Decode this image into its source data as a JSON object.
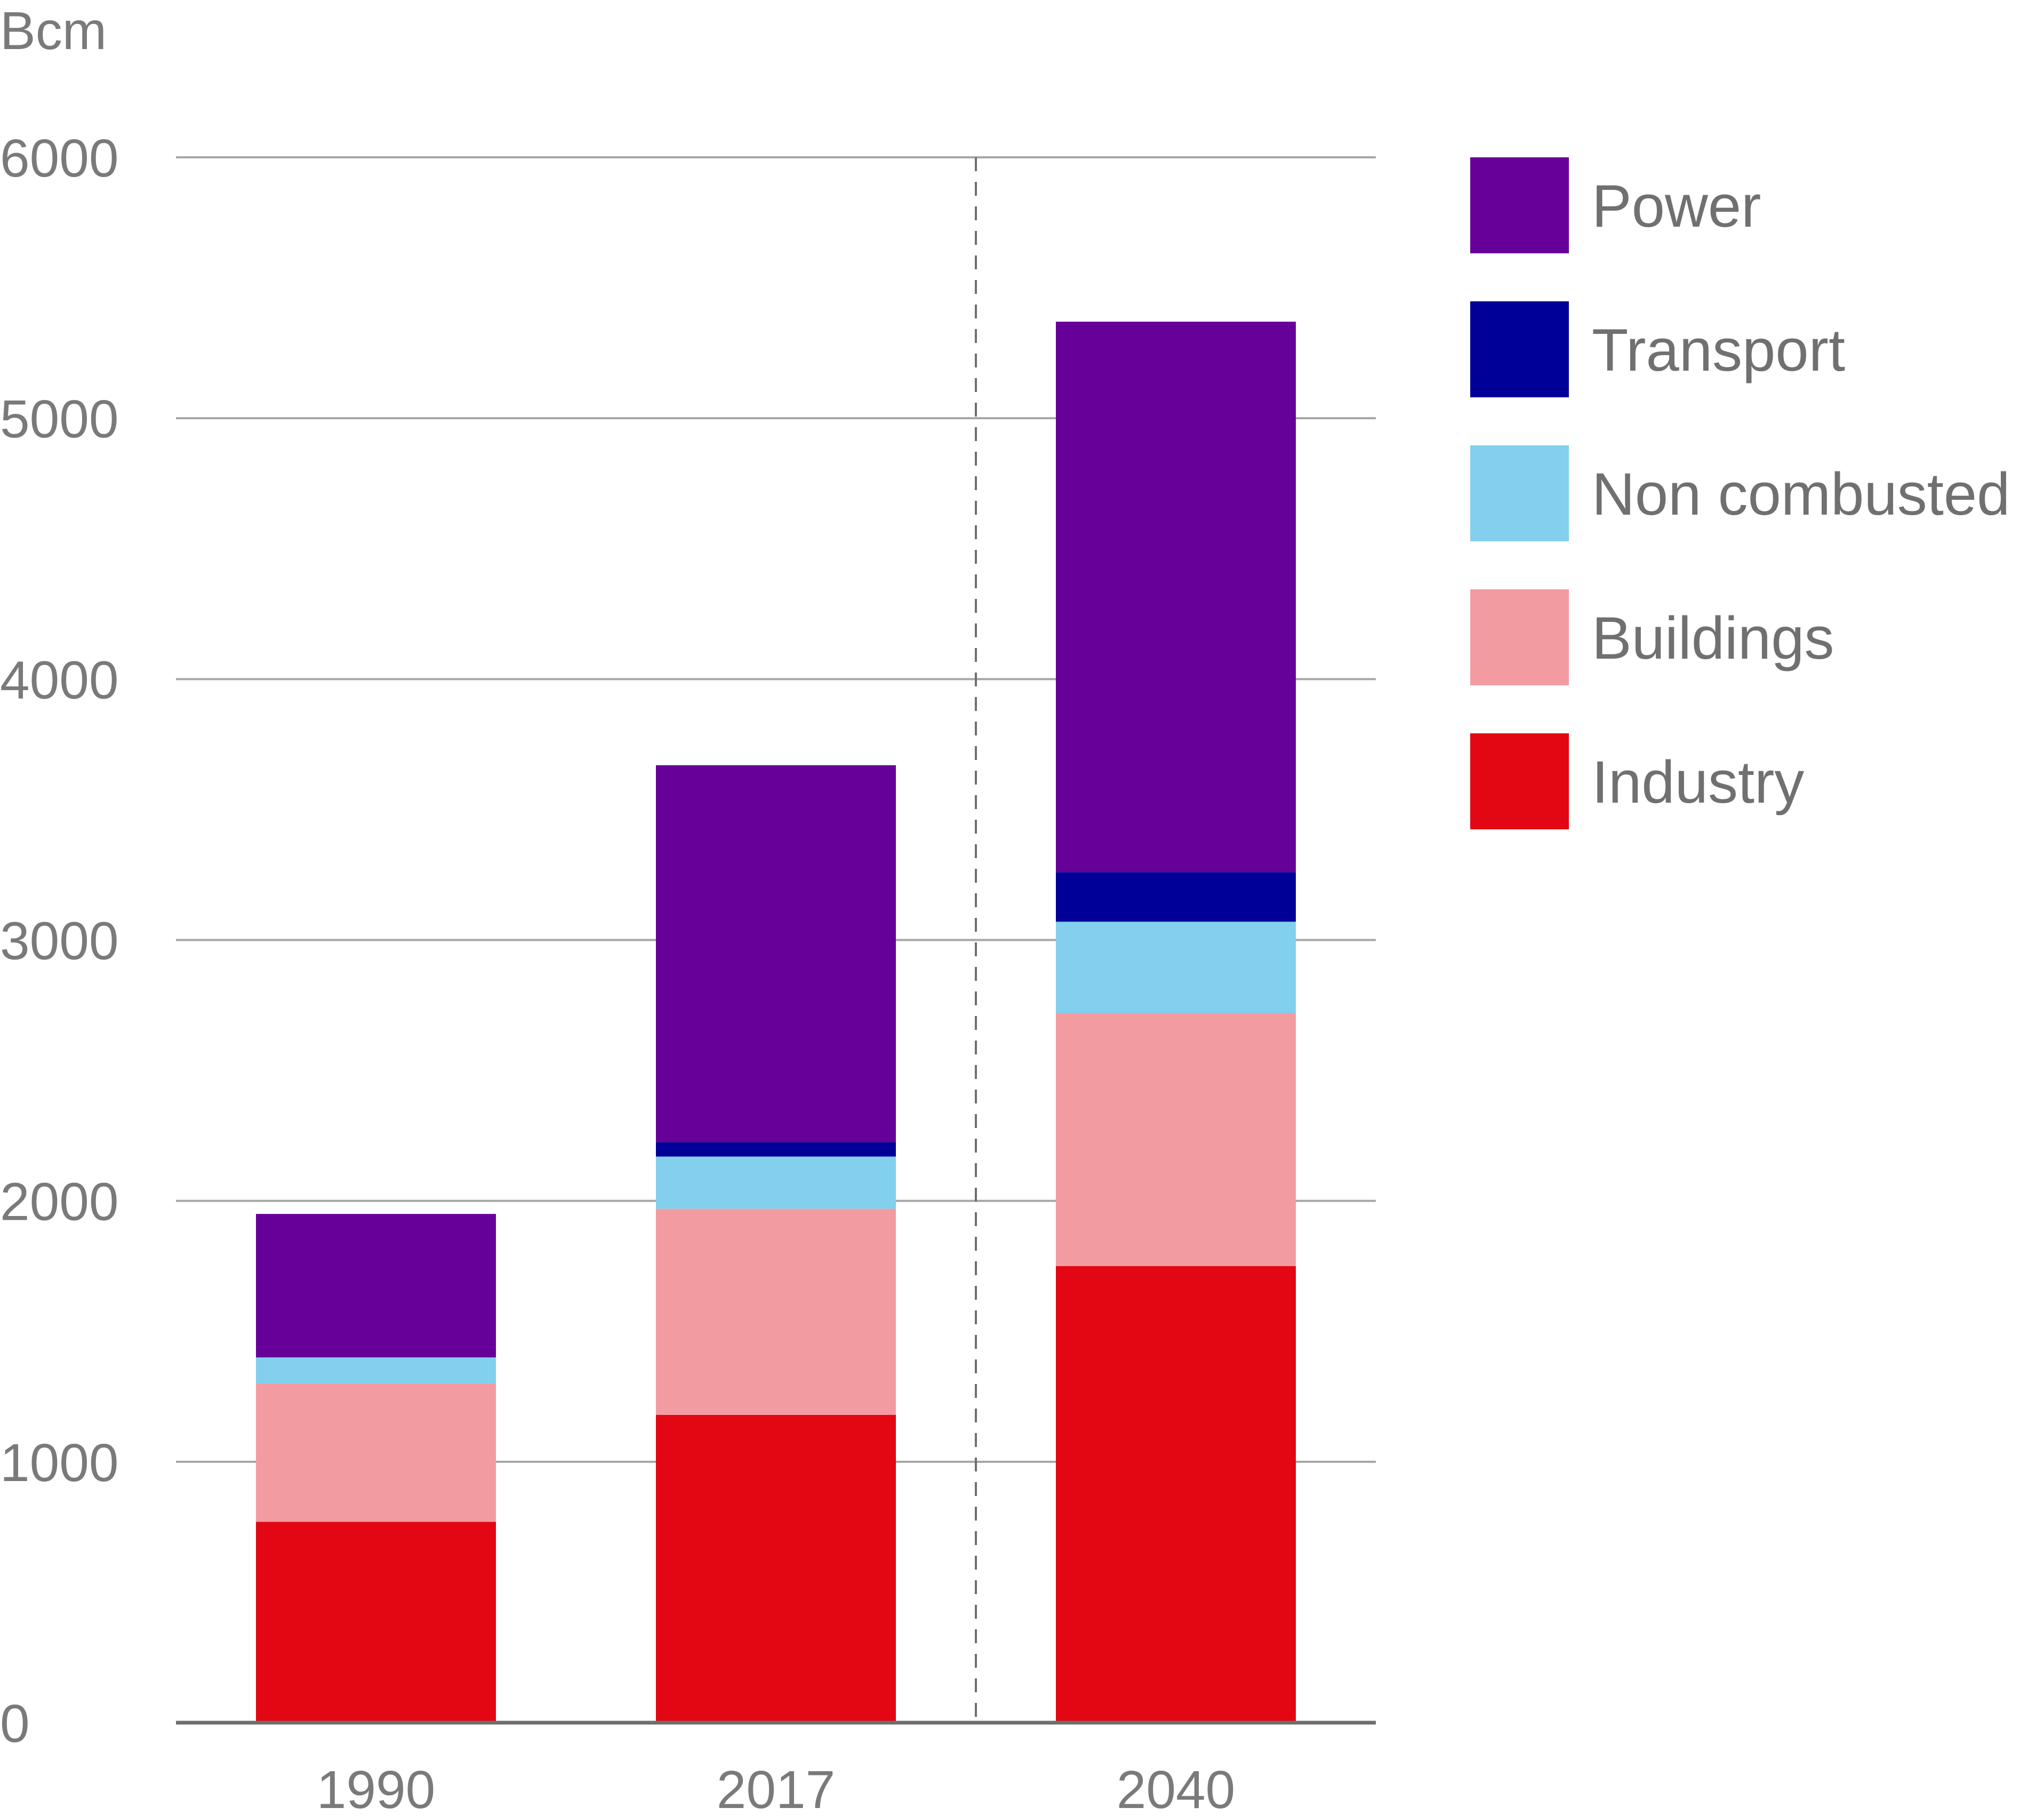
{
  "chart_data": {
    "type": "bar",
    "stacked": true,
    "title": "",
    "xlabel": "",
    "ylabel": "Bcm",
    "ylim": [
      0,
      6000
    ],
    "yticks": [
      0,
      1000,
      2000,
      3000,
      4000,
      5000,
      6000
    ],
    "grid": true,
    "legend_position": "right",
    "categories": [
      "1990",
      "2017",
      "2040"
    ],
    "projection_divider_after": "2017",
    "series": [
      {
        "name": "Industry",
        "color": "#e30613",
        "values": [
          770,
          1180,
          1750
        ]
      },
      {
        "name": "Buildings",
        "color": "#f29ca1",
        "values": [
          530,
          790,
          970
        ]
      },
      {
        "name": "Non combusted",
        "color": "#82cfee",
        "values": [
          100,
          200,
          350
        ]
      },
      {
        "name": "Transport",
        "color": "#000099",
        "values": [
          0,
          55,
          190
        ]
      },
      {
        "name": "Power",
        "color": "#660099",
        "values": [
          550,
          1445,
          2110
        ]
      }
    ]
  }
}
